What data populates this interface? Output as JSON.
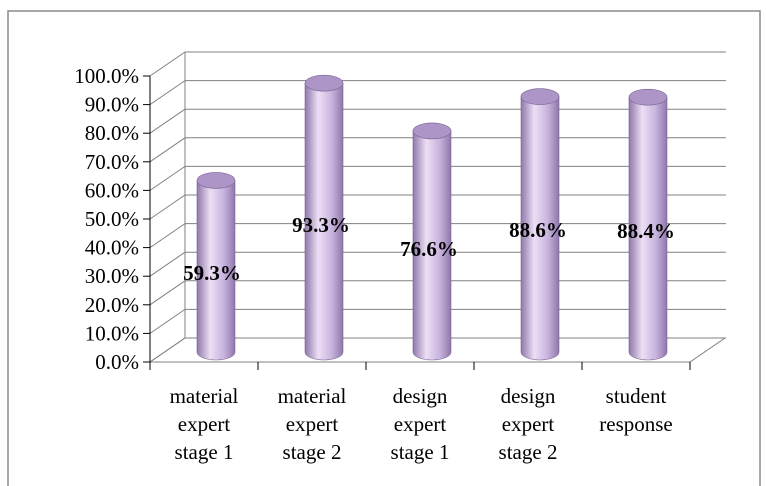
{
  "chart_data": {
    "type": "bar",
    "style": "3d-cylinder",
    "categories": [
      [
        "material",
        "expert",
        "stage 1"
      ],
      [
        "material",
        "expert",
        "stage 2"
      ],
      [
        "design",
        "expert",
        "stage 1"
      ],
      [
        "design",
        "expert",
        "stage 2"
      ],
      [
        "student",
        "response"
      ]
    ],
    "values": [
      59.3,
      93.3,
      76.6,
      88.6,
      88.4
    ],
    "data_labels": [
      "59.3%",
      "93.3%",
      "76.6%",
      "88.6%",
      "88.4%"
    ],
    "y_ticks": [
      "0.0%",
      "10.0%",
      "20.0%",
      "30.0%",
      "40.0%",
      "50.0%",
      "60.0%",
      "70.0%",
      "80.0%",
      "90.0%",
      "100.0%"
    ],
    "ylim": [
      0,
      100
    ],
    "grid": true,
    "legend": "none",
    "title": "",
    "xlabel": "",
    "ylabel": "",
    "colors": {
      "bar_light": "#ecdff5",
      "bar_mid": "#c9b4de",
      "bar_dark": "#8f78aa",
      "bar_top": "#ad96c7",
      "grid": "#808080",
      "frame_border": "#8a8a8a"
    }
  }
}
